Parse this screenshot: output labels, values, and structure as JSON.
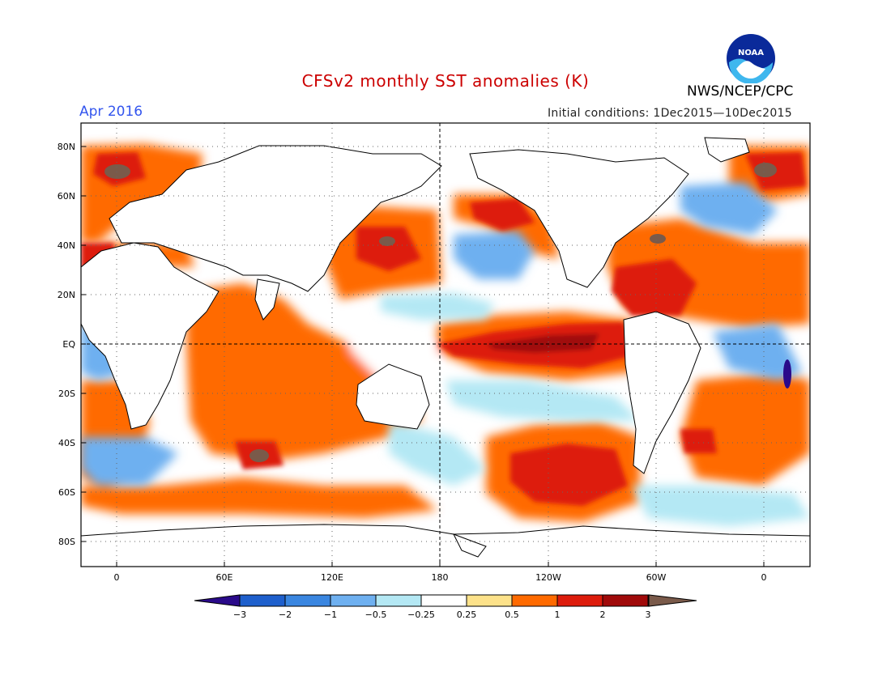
{
  "header": {
    "title": "CFSv2 monthly SST anomalies (K)",
    "valid_month": "Apr 2016",
    "initial_conditions": "Initial conditions: 1Dec2015—10Dec2015",
    "agency": "NWS/NCEP/CPC",
    "logo_text": "NOAA",
    "logo_icon": "noaa-logo-icon"
  },
  "map": {
    "lat_labels": [
      "80N",
      "60N",
      "40N",
      "20N",
      "EQ",
      "20S",
      "40S",
      "60S",
      "80S"
    ],
    "lon_labels": [
      "0",
      "60E",
      "120E",
      "180",
      "120W",
      "60W",
      "0"
    ]
  },
  "colorbar": {
    "labels": [
      "−3",
      "−2",
      "−1",
      "−0.5",
      "−0.25",
      "0.25",
      "0.5",
      "1",
      "2",
      "3"
    ],
    "colors": [
      "#2a0a8a",
      "#1e5fcc",
      "#3a86e0",
      "#6eb0f0",
      "#b4e8f4",
      "#ffffff",
      "#fde28a",
      "#ff6a00",
      "#dd1c0c",
      "#a00a0a",
      "#7a5a4a"
    ],
    "unit": "K"
  }
}
